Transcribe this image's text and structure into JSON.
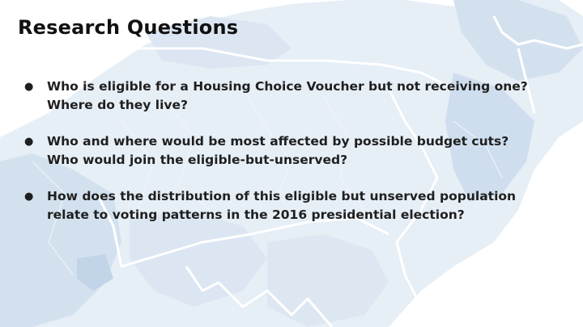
{
  "slide": {
    "title": "Research Questions",
    "bullets": [
      {
        "lines": [
          "Who is eligible for a Housing Choice Voucher but not receiving one?",
          "Where do they live?"
        ]
      },
      {
        "lines": [
          "Who and where would be most affected by possible budget cuts?",
          "Who would join the eligible-but-unserved?"
        ]
      },
      {
        "lines": [
          "How does the distribution of this eligible but unserved population",
          "relate to voting patterns in the 2016 presidential election?"
        ]
      }
    ]
  },
  "colors": {
    "background": "#ffffff",
    "map_light": "#e6eef6",
    "map_mid": "#d3e1ef",
    "map_dark": "#c1d4e8",
    "state_line": "#ffffff",
    "text": "#1f1f1f"
  }
}
